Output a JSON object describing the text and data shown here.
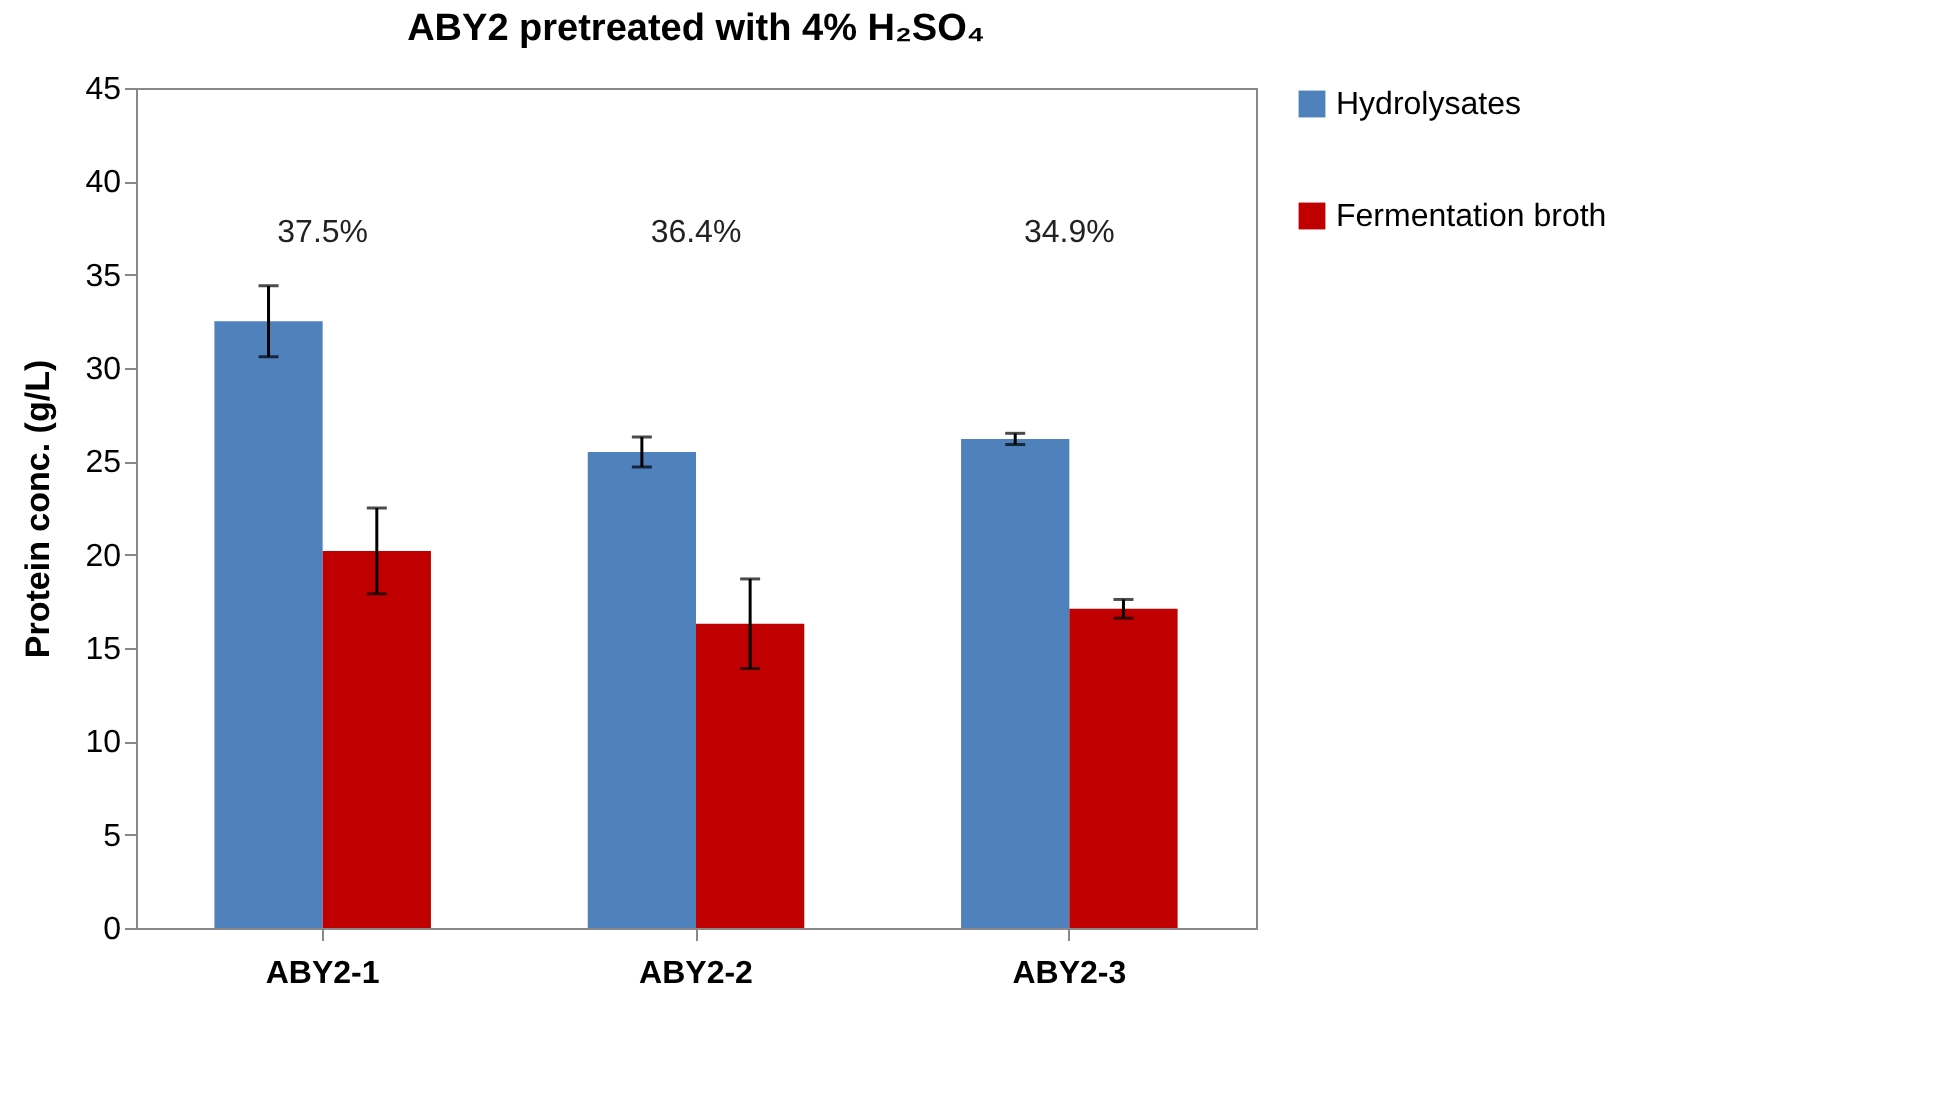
{
  "chart_data": {
    "type": "bar",
    "title": "ABY2 pretreated with 4% H₂SO₄",
    "ylabel": "Protein conc. (g/L)",
    "categories": [
      "ABY2-1",
      "ABY2-2",
      "ABY2-3"
    ],
    "series": [
      {
        "name": "Hydrolysates",
        "color": "#4f81bd",
        "values": [
          32.5,
          25.5,
          26.2
        ],
        "errors": [
          1.9,
          0.8,
          0.3
        ]
      },
      {
        "name": "Fermentation broth",
        "color": "#c00000",
        "values": [
          20.2,
          16.3,
          17.1
        ],
        "errors": [
          2.3,
          2.4,
          0.5
        ]
      }
    ],
    "annotations": [
      "37.5%",
      "36.4%",
      "34.9%"
    ],
    "ylim": [
      0,
      45
    ],
    "yticks": [
      0,
      5,
      10,
      15,
      20,
      25,
      30,
      35,
      40,
      45
    ],
    "grid": false,
    "legend": "right"
  }
}
